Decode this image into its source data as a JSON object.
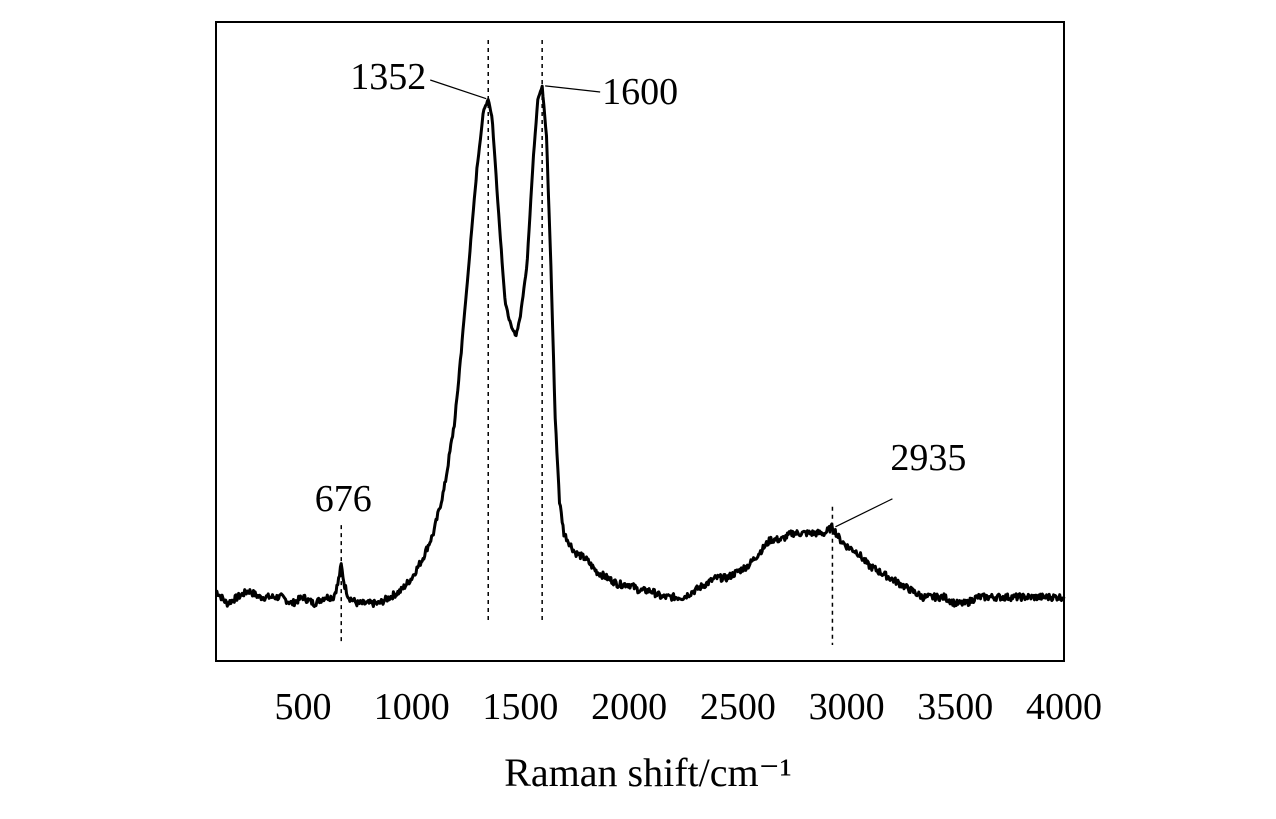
{
  "chart_data": {
    "type": "line",
    "title": "",
    "xlabel": "Raman shift/cm⁻¹",
    "ylabel": "",
    "xlim": [
      100,
      4000
    ],
    "ylim": [
      0,
      100
    ],
    "grid": false,
    "legend": "none",
    "x_ticks": [
      {
        "value": 500,
        "label": "500"
      },
      {
        "value": 1000,
        "label": "1000"
      },
      {
        "value": 1500,
        "label": "1500"
      },
      {
        "value": 2000,
        "label": "2000"
      },
      {
        "value": 2500,
        "label": "2500"
      },
      {
        "value": 3000,
        "label": "3000"
      },
      {
        "value": 3500,
        "label": "3500"
      },
      {
        "value": 4000,
        "label": "4000"
      }
    ],
    "series": [
      {
        "color": "#000000",
        "points": [
          [
            100,
            11
          ],
          [
            150,
            9
          ],
          [
            200,
            10
          ],
          [
            250,
            11
          ],
          [
            300,
            10
          ],
          [
            350,
            10
          ],
          [
            400,
            10
          ],
          [
            450,
            9
          ],
          [
            500,
            10
          ],
          [
            550,
            9
          ],
          [
            600,
            10
          ],
          [
            640,
            10
          ],
          [
            660,
            12
          ],
          [
            676,
            15
          ],
          [
            690,
            12
          ],
          [
            710,
            10
          ],
          [
            750,
            9
          ],
          [
            800,
            9
          ],
          [
            850,
            9
          ],
          [
            900,
            10
          ],
          [
            950,
            11
          ],
          [
            1000,
            13
          ],
          [
            1050,
            16
          ],
          [
            1100,
            20
          ],
          [
            1150,
            27
          ],
          [
            1200,
            38
          ],
          [
            1250,
            57
          ],
          [
            1300,
            77
          ],
          [
            1330,
            86
          ],
          [
            1352,
            88
          ],
          [
            1370,
            85
          ],
          [
            1400,
            70
          ],
          [
            1430,
            56
          ],
          [
            1460,
            52
          ],
          [
            1480,
            51
          ],
          [
            1500,
            54
          ],
          [
            1530,
            62
          ],
          [
            1560,
            79
          ],
          [
            1580,
            88
          ],
          [
            1600,
            90
          ],
          [
            1620,
            82
          ],
          [
            1640,
            62
          ],
          [
            1660,
            38
          ],
          [
            1680,
            25
          ],
          [
            1700,
            20
          ],
          [
            1750,
            17
          ],
          [
            1800,
            16
          ],
          [
            1850,
            14
          ],
          [
            1900,
            13
          ],
          [
            1950,
            12
          ],
          [
            2000,
            12
          ],
          [
            2050,
            11
          ],
          [
            2100,
            11
          ],
          [
            2150,
            10
          ],
          [
            2200,
            10
          ],
          [
            2250,
            10
          ],
          [
            2300,
            11
          ],
          [
            2350,
            12
          ],
          [
            2400,
            13
          ],
          [
            2450,
            13
          ],
          [
            2500,
            14
          ],
          [
            2550,
            15
          ],
          [
            2600,
            17
          ],
          [
            2650,
            19
          ],
          [
            2700,
            19
          ],
          [
            2750,
            20
          ],
          [
            2800,
            20
          ],
          [
            2850,
            20
          ],
          [
            2900,
            20
          ],
          [
            2935,
            21
          ],
          [
            2970,
            19
          ],
          [
            3000,
            18
          ],
          [
            3050,
            17
          ],
          [
            3100,
            15
          ],
          [
            3150,
            14
          ],
          [
            3200,
            13
          ],
          [
            3250,
            12
          ],
          [
            3300,
            11
          ],
          [
            3350,
            10
          ],
          [
            3400,
            10
          ],
          [
            3450,
            10
          ],
          [
            3500,
            9
          ],
          [
            3550,
            9
          ],
          [
            3600,
            10
          ],
          [
            3650,
            10
          ],
          [
            3700,
            10
          ],
          [
            3750,
            10
          ],
          [
            3800,
            10
          ],
          [
            3850,
            10
          ],
          [
            3900,
            10
          ],
          [
            3950,
            10
          ],
          [
            4000,
            10
          ]
        ]
      }
    ],
    "annotations": [
      {
        "label": "676",
        "x": 676,
        "guide": "vertical-dashed",
        "placement": "above"
      },
      {
        "label": "1352",
        "x": 1352,
        "guide": "vertical-dashed",
        "placement": "upper-left"
      },
      {
        "label": "1600",
        "x": 1600,
        "guide": "vertical-dashed",
        "placement": "upper-right"
      },
      {
        "label": "2935",
        "x": 2935,
        "guide": "vertical-dashed",
        "placement": "upper-right"
      }
    ]
  }
}
